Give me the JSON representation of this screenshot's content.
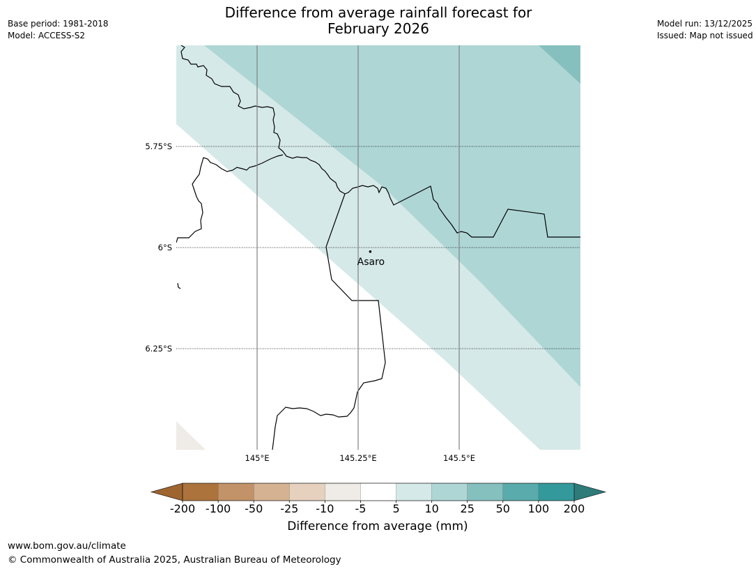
{
  "header": {
    "title_line1": "Difference from average rainfall forecast for",
    "title_line2": "February 2026",
    "base_period": "Base period: 1981-2018",
    "model": "Model: ACCESS-S2",
    "model_run": "Model run: 13/12/2025",
    "issued": "Issued: Map not issued"
  },
  "map": {
    "extent": {
      "lon_min": 144.8,
      "lon_max": 145.8,
      "lat_min": -6.5,
      "lat_max": -5.5
    },
    "lat_lines": [
      {
        "value": -5.75,
        "label": "5.75°S"
      },
      {
        "value": -6.0,
        "label": "6°S"
      },
      {
        "value": -6.25,
        "label": "6.25°S"
      }
    ],
    "lon_lines": [
      {
        "value": 145.0,
        "label": "145°E"
      },
      {
        "value": 145.25,
        "label": "145.25°E"
      },
      {
        "value": 145.5,
        "label": "145.5°E"
      }
    ],
    "place": {
      "name": "Asaro",
      "lon": 145.28,
      "lat": -6.01
    },
    "zone_colors": {
      "band_5_10": "#d5e9e8",
      "band_10_25": "#aed6d5",
      "band_25_50": "#85c0bf",
      "band_neg10_neg5": "#efebe6",
      "coastline": "#000000",
      "gridline_lon": "#808080"
    }
  },
  "colorbar": {
    "title": "Difference from average (mm)",
    "ticks": [
      "-200",
      "-100",
      "-50",
      "-25",
      "-10",
      "-5",
      "5",
      "10",
      "25",
      "50",
      "100",
      "200"
    ],
    "colors": [
      "#9e6530",
      "#ad733c",
      "#c29368",
      "#d4b292",
      "#e5d1be",
      "#efebe6",
      "#ffffff",
      "#d5e9e8",
      "#aed6d5",
      "#85c0bf",
      "#5aabab",
      "#34999a",
      "#2e7b7a"
    ]
  },
  "footer": {
    "url": "www.bom.gov.au/climate",
    "copyright": "© Commonwealth of Australia 2025, Australian Bureau of Meteorology"
  }
}
